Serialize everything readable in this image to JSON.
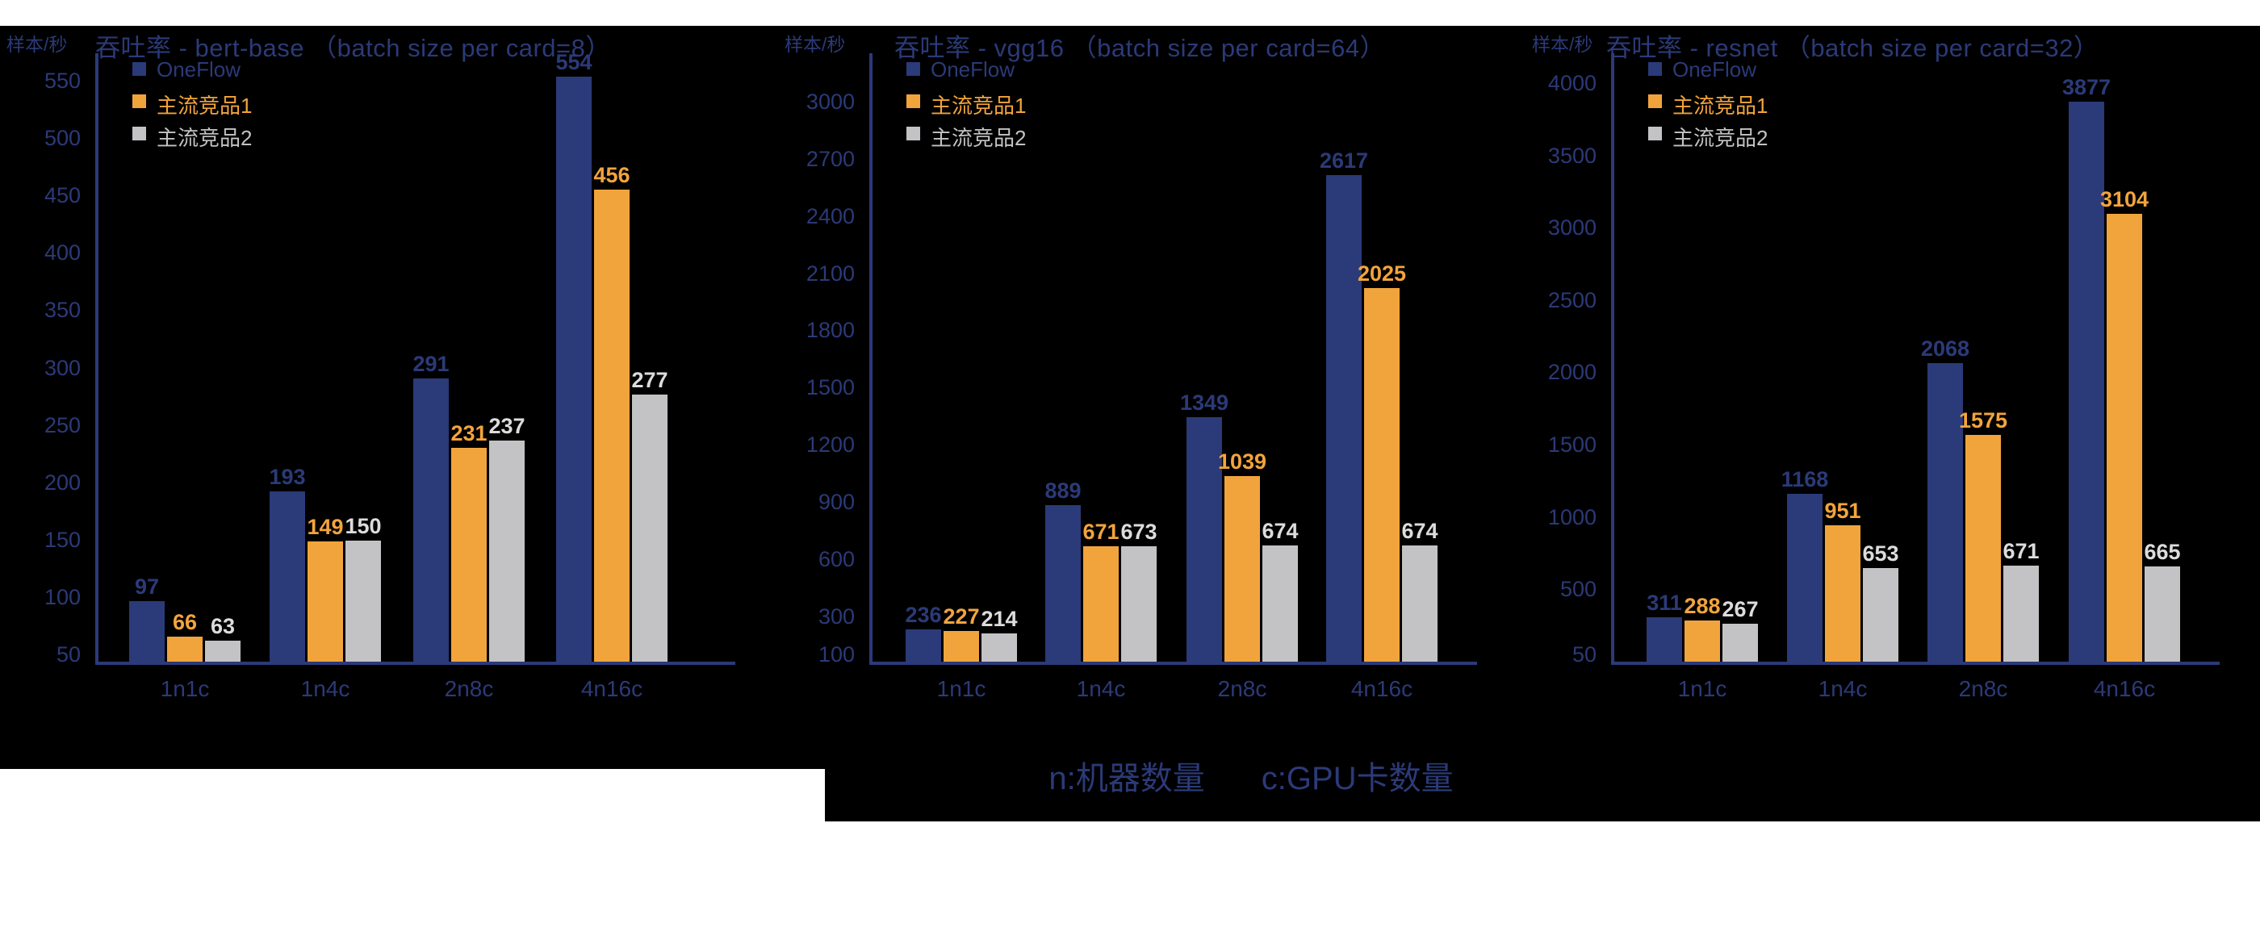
{
  "page": {
    "background": "#ffffff",
    "panel_background": "#000000"
  },
  "colors": {
    "navy": "#2B3A78",
    "orange": "#F2A43C",
    "gray": "#C3C3C5",
    "gray_value_label": "#DCDCDC",
    "axis": "#2B3A78",
    "text": "#2B3A78"
  },
  "legend": {
    "items": [
      {
        "name": "OneFlow",
        "color": "#2B3A78"
      },
      {
        "name": "主流竞品1",
        "color": "#F2A43C"
      },
      {
        "name": "主流竞品2",
        "color": "#C3C3C5"
      }
    ]
  },
  "footer": {
    "machine_label": "n:机器数量",
    "gpu_label": "c:GPU卡数量"
  },
  "chart_data": [
    {
      "type": "bar",
      "title": "吞吐率 - bert-base （batch size per card=8）",
      "ylabel": "样本/秒",
      "categories": [
        "1n1c",
        "1n4c",
        "2n8c",
        "4n16c"
      ],
      "series": [
        {
          "name": "OneFlow",
          "values": [
            97,
            193,
            291,
            554
          ]
        },
        {
          "name": "主流竞品1",
          "values": [
            66,
            149,
            231,
            456
          ]
        },
        {
          "name": "主流竞品2",
          "values": [
            63,
            150,
            237,
            277
          ]
        }
      ],
      "yticks": [
        50,
        100,
        150,
        200,
        250,
        300,
        350,
        400,
        450,
        500,
        550
      ],
      "ylim": [
        50,
        550
      ],
      "grid": false,
      "legend_position": "top-left"
    },
    {
      "type": "bar",
      "title": "吞吐率 - vgg16 （batch size per card=64）",
      "ylabel": "样本/秒",
      "categories": [
        "1n1c",
        "1n4c",
        "2n8c",
        "4n16c"
      ],
      "series": [
        {
          "name": "OneFlow",
          "values": [
            236,
            889,
            1349,
            2617
          ]
        },
        {
          "name": "主流竞品1",
          "values": [
            227,
            671,
            1039,
            2025
          ]
        },
        {
          "name": "主流竞品2",
          "values": [
            214,
            673,
            674,
            674
          ]
        }
      ],
      "yticks": [
        100,
        300,
        600,
        900,
        1200,
        1500,
        1800,
        2100,
        2400,
        2700,
        3000
      ],
      "ylim": [
        100,
        3000
      ],
      "grid": false,
      "legend_position": "top-left"
    },
    {
      "type": "bar",
      "title": "吞吐率 - resnet （batch size per card=32）",
      "ylabel": "样本/秒",
      "categories": [
        "1n1c",
        "1n4c",
        "2n8c",
        "4n16c"
      ],
      "series": [
        {
          "name": "OneFlow",
          "values": [
            311,
            1168,
            2068,
            3877
          ]
        },
        {
          "name": "主流竞品1",
          "values": [
            288,
            951,
            1575,
            3104
          ]
        },
        {
          "name": "主流竞品2",
          "values": [
            267,
            653,
            671,
            665
          ]
        }
      ],
      "yticks": [
        50,
        500,
        1000,
        1500,
        2000,
        2500,
        3000,
        3500,
        4000
      ],
      "ylim": [
        50,
        4000
      ],
      "grid": false,
      "legend_position": "top-left"
    }
  ]
}
